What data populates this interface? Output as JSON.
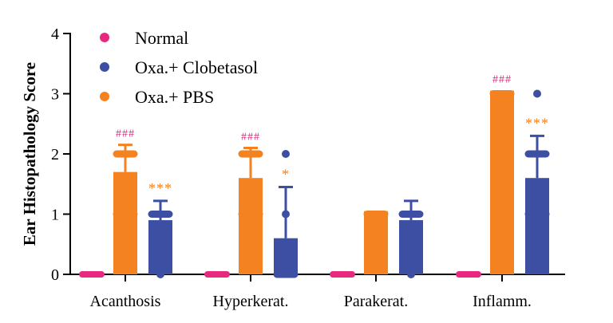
{
  "chart_data": {
    "type": "bar",
    "title": "",
    "xlabel": "",
    "ylabel": "Ear Histopathology Score",
    "ylim": [
      0,
      4
    ],
    "yticks": [
      "0",
      "1",
      "2",
      "3",
      "4"
    ],
    "categories": [
      "Acanthosis",
      "Hyperkerat.",
      "Parakerat.",
      "Inflamm."
    ],
    "legend_position": "top-left",
    "series": [
      {
        "name": "Normal",
        "color": "#e8277f",
        "values": [
          0,
          0,
          0,
          0
        ],
        "error": [
          0,
          0,
          0,
          0
        ],
        "points": [
          [
            0,
            0,
            0,
            0,
            0
          ],
          [
            0,
            0,
            0,
            0,
            0
          ],
          [
            0,
            0,
            0,
            0,
            0
          ],
          [
            0,
            0,
            0,
            0,
            0
          ]
        ]
      },
      {
        "name": "Oxa.+ PBS",
        "color": "#f58220",
        "values": [
          1.7,
          1.6,
          1.05,
          3.05
        ],
        "error": [
          0.45,
          0.5,
          0,
          0
        ],
        "points": [
          [
            2,
            2,
            2,
            1,
            1
          ],
          [
            2,
            2,
            2,
            1,
            1
          ],
          [
            1,
            1,
            1,
            1,
            1
          ],
          [
            3,
            3,
            3,
            3,
            3
          ]
        ],
        "annotations": [
          "###",
          "###",
          "",
          "###"
        ],
        "annotation_color": "#e8277f"
      },
      {
        "name": "Oxa.+ Clobetasol",
        "color": "#3d4fa3",
        "values": [
          0.9,
          0.6,
          0.9,
          1.6
        ],
        "error": [
          0.32,
          0.85,
          0.32,
          0.7
        ],
        "points": [
          [
            1,
            1,
            1,
            1,
            0
          ],
          [
            2,
            1,
            0,
            0,
            0
          ],
          [
            1,
            1,
            1,
            1,
            0
          ],
          [
            3,
            2,
            2,
            1,
            1
          ]
        ],
        "annotations": [
          "***",
          "*",
          "",
          "***"
        ],
        "annotation_color": "#f58220"
      }
    ],
    "legend_order": [
      "Normal",
      "Oxa.+ Clobetasol",
      "Oxa.+ PBS"
    ]
  }
}
